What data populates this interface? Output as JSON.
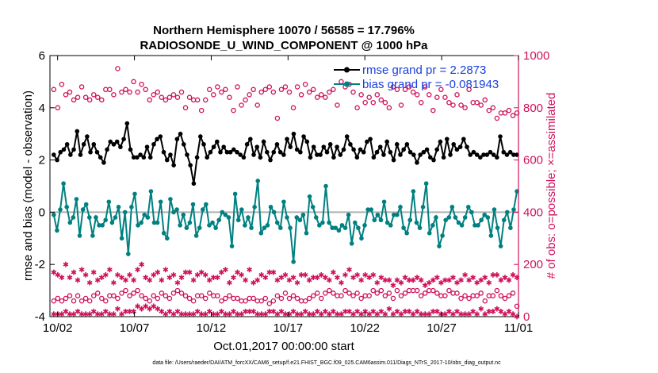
{
  "colors": {
    "rmse": "#000000",
    "bias": "#008080",
    "obs": "#d0115a",
    "zero_line": "#b0b0b0",
    "legend_text": "#1a3fe0"
  },
  "chart_data": {
    "type": "line",
    "title": "Northern Hemisphere 10070 / 56585 = 17.796%",
    "subtitle": "RADIOSONDE_U_WIND_COMPONENT @ 1000 hPa",
    "xlabel": "Oct.01,2017 00:00:00 start",
    "ylabel_left": "rmse and bias (model - observation)",
    "ylabel_right": "# of obs: o=possible; ×=assimilated",
    "footnote": "data file: /Users/raeder/DAI/ATM_forcXX/CAM6_setup/f.e21.FHIST_BGC.f09_025.CAM6assim.011/Diags_NTrS_2017-10/obs_diag_output.nc",
    "xlim": [
      1.5,
      32
    ],
    "ylim_left": [
      -4,
      6
    ],
    "ylim_right": [
      0,
      1000
    ],
    "yticks_left": [
      "-4",
      "-2",
      "0",
      "2",
      "4",
      "6"
    ],
    "yticks_right": [
      "0",
      "200",
      "400",
      "600",
      "800",
      "1000"
    ],
    "xticks": [
      {
        "x": 2,
        "label": "10/02"
      },
      {
        "x": 7,
        "label": "10/07"
      },
      {
        "x": 12,
        "label": "10/12"
      },
      {
        "x": 17,
        "label": "10/17"
      },
      {
        "x": 22,
        "label": "10/22"
      },
      {
        "x": 27,
        "label": "10/27"
      },
      {
        "x": 32,
        "label": "11/01"
      }
    ],
    "legend": [
      {
        "key": "rmse",
        "label": "rmse grand pr = 2.2873"
      },
      {
        "key": "bias",
        "label": "bias grand pr = -0.081943"
      }
    ],
    "series": [
      {
        "name": "rmse",
        "axis": "left",
        "marker": "filled-circle",
        "values": [
          2.2,
          2.0,
          2.3,
          2.4,
          2.6,
          2.2,
          2.4,
          3.1,
          2.2,
          2.6,
          2.9,
          2.3,
          2.6,
          2.3,
          2.1,
          1.9,
          2.4,
          2.7,
          2.6,
          2.7,
          2.5,
          2.8,
          3.4,
          2.4,
          2.1,
          2.1,
          2.2,
          2.1,
          2.5,
          2.1,
          2.6,
          2.8,
          2.9,
          2.3,
          2.0,
          2.2,
          1.8,
          2.8,
          3.0,
          2.6,
          2.2,
          1.8,
          1.1,
          2.1,
          2.9,
          2.6,
          2.1,
          2.3,
          2.5,
          2.7,
          2.3,
          2.5,
          2.3,
          2.3,
          2.4,
          2.3,
          2.2,
          2.1,
          2.6,
          2.8,
          2.2,
          2.5,
          2.1,
          2.7,
          2.3,
          2.0,
          2.3,
          2.6,
          2.3,
          2.2,
          2.8,
          2.5,
          3.0,
          2.4,
          2.3,
          2.9,
          2.7,
          2.1,
          2.5,
          2.2,
          2.2,
          2.5,
          2.3,
          2.6,
          2.1,
          2.5,
          2.2,
          2.4,
          2.9,
          2.6,
          2.4,
          2.1,
          2.4,
          2.3,
          2.7,
          2.8,
          2.1,
          2.3,
          2.5,
          2.2,
          2.7,
          2.3,
          2.0,
          2.6,
          2.2,
          2.4,
          2.6,
          2.3,
          2.2,
          1.9,
          2.2,
          2.3,
          2.4,
          2.1,
          2.0,
          2.4,
          2.7,
          2.1,
          2.8,
          2.2,
          2.6,
          2.4,
          2.5,
          2.8,
          2.5,
          2.2,
          2.3,
          2.2,
          2.1,
          2.2,
          2.2,
          2.3,
          2.2,
          2.1,
          2.9,
          2.3,
          2.2,
          2.3,
          2.2,
          2.2
        ]
      },
      {
        "name": "bias",
        "axis": "left",
        "marker": "filled-circle",
        "values": [
          -0.1,
          -0.7,
          0.1,
          1.1,
          0.2,
          -0.4,
          -0.2,
          0.5,
          -0.9,
          0.1,
          0.3,
          -0.2,
          -0.9,
          -0.2,
          -0.5,
          -0.5,
          -0.3,
          0.4,
          -0.4,
          -0.2,
          0.2,
          -1.0,
          0.0,
          -1.6,
          0.2,
          0.7,
          -0.5,
          -0.4,
          -0.1,
          -0.2,
          0.8,
          -0.4,
          -0.4,
          0.4,
          -0.8,
          -1.0,
          0.5,
          0.0,
          0.1,
          -0.5,
          -0.1,
          -0.6,
          -0.4,
          0.3,
          -0.9,
          -0.6,
          0.1,
          0.3,
          -0.5,
          -0.4,
          -0.6,
          -0.3,
          0.0,
          -0.1,
          -0.2,
          -1.3,
          0.7,
          -0.3,
          0.1,
          -0.5,
          -0.2,
          -0.6,
          0.2,
          1.2,
          -0.8,
          -0.6,
          -0.5,
          0.2,
          0.0,
          -0.4,
          -0.6,
          0.4,
          -0.2,
          -0.6,
          -1.9,
          -0.2,
          -0.3,
          -0.1,
          -0.8,
          0.6,
          0.2,
          -0.2,
          -0.5,
          -0.4,
          1.0,
          -0.4,
          -0.6,
          -0.6,
          -0.7,
          -0.5,
          -0.6,
          -0.1,
          -1.2,
          -0.4,
          -0.6,
          -1.0,
          -0.5,
          0.1,
          0.1,
          -0.3,
          -0.1,
          -0.3,
          0.4,
          -0.4,
          -0.5,
          -0.1,
          -0.1,
          0.2,
          -0.6,
          -0.8,
          -0.3,
          0.8,
          -0.4,
          -0.6,
          0.2,
          1.1,
          -0.8,
          -0.5,
          -0.2,
          -1.3,
          -0.9,
          -0.3,
          -0.2,
          0.2,
          -0.2,
          -0.4,
          -0.5,
          -0.2,
          0.2,
          0.0,
          -0.5,
          -0.5,
          -0.3,
          -0.1,
          -0.2,
          -0.9,
          0.1,
          -0.6,
          -1.3,
          -0.3,
          0.0,
          -0.6,
          0.1,
          0.8
        ]
      },
      {
        "name": "obs possible",
        "axis": "right",
        "marker": "open-circle",
        "values": [
          870,
          800,
          890,
          850,
          860,
          830,
          840,
          880,
          840,
          830,
          850,
          840,
          830,
          870,
          870,
          850,
          950,
          860,
          870,
          860,
          900,
          860,
          890,
          870,
          830,
          850,
          860,
          840,
          830,
          840,
          850,
          840,
          860,
          800,
          840,
          830,
          830,
          790,
          830,
          870,
          850,
          880,
          860,
          870,
          840,
          790,
          880,
          810,
          830,
          850,
          870,
          810,
          860,
          870,
          880,
          860,
          760,
          870,
          880,
          860,
          800,
          880,
          850,
          890,
          860,
          870,
          840,
          850,
          840,
          860,
          870,
          810,
          900,
          880,
          890,
          860,
          800,
          850,
          820,
          840,
          820,
          850,
          830,
          820,
          800,
          880,
          870,
          810,
          870,
          880,
          860,
          850,
          820,
          880,
          850,
          790,
          840,
          870,
          840,
          820,
          810,
          850,
          810,
          800,
          870,
          820,
          820,
          810,
          830,
          790,
          800,
          760,
          780,
          780,
          790,
          770,
          780
        ]
      },
      {
        "name": "obs assimilated",
        "axis": "right",
        "marker": "star",
        "values": [
          170,
          160,
          150,
          200,
          150,
          170,
          140,
          180,
          160,
          130,
          170,
          140,
          150,
          160,
          180,
          130,
          160,
          150,
          140,
          160,
          140,
          180,
          200,
          150,
          140,
          160,
          170,
          140,
          180,
          150,
          160,
          130,
          150,
          170,
          170,
          140,
          160,
          170,
          160,
          140,
          150,
          150,
          170,
          180,
          130,
          150,
          170,
          160,
          140,
          180,
          130,
          140,
          160,
          150,
          170,
          170,
          140,
          150,
          160,
          140,
          150,
          130,
          160,
          160,
          140,
          150,
          150,
          160,
          150,
          140,
          170,
          150,
          130,
          160,
          180,
          150,
          160,
          140,
          160,
          150,
          160,
          130,
          150,
          140,
          140,
          120,
          140,
          130,
          150,
          140,
          140,
          150,
          140,
          120,
          130,
          140,
          150,
          130,
          140,
          140,
          150,
          130,
          140,
          160,
          140,
          150,
          130,
          140,
          150,
          130,
          160,
          160,
          140,
          150,
          140,
          160,
          150
        ]
      },
      {
        "name": "obs possible low",
        "axis": "right",
        "marker": "open-circle",
        "values": [
          60,
          70,
          60,
          70,
          80,
          60,
          80,
          60,
          70,
          60,
          80,
          90,
          70,
          60,
          80,
          80,
          70,
          90,
          100,
          80,
          90,
          100,
          80,
          70,
          60,
          80,
          70,
          90,
          80,
          70,
          90,
          100,
          90,
          80,
          70,
          60,
          80,
          80,
          70,
          90,
          80,
          80,
          60,
          70,
          80,
          70,
          70,
          60,
          60,
          70,
          70,
          60,
          60,
          70,
          50,
          60,
          80,
          70,
          90,
          70,
          80,
          70,
          60,
          60,
          70,
          80,
          90,
          70,
          90,
          100,
          90,
          80,
          80,
          100,
          90,
          80,
          90,
          70,
          80,
          80,
          100,
          90,
          100,
          80,
          90,
          70,
          100,
          80,
          90,
          100,
          100,
          100,
          80,
          90,
          100,
          100,
          90,
          80,
          80,
          100,
          90,
          90,
          70,
          80,
          70,
          80,
          80,
          90,
          60,
          80,
          80,
          100,
          80,
          70,
          80,
          90,
          40
        ]
      },
      {
        "name": "obs assimilated low",
        "axis": "right",
        "marker": "star",
        "values": [
          10,
          10,
          10,
          20,
          10,
          10,
          20,
          10,
          10,
          10,
          20,
          10,
          10,
          20,
          10,
          10,
          30,
          10,
          20,
          20,
          20,
          40,
          30,
          40,
          30,
          40,
          30,
          20,
          10,
          20,
          10,
          20,
          10,
          10,
          10,
          10,
          20,
          10,
          10,
          20,
          10,
          10,
          20,
          10,
          10,
          20,
          10,
          10,
          20,
          20,
          20,
          10,
          10,
          10,
          20,
          20,
          10,
          20,
          10,
          10,
          20,
          10,
          10,
          20,
          10,
          10,
          20,
          10,
          20,
          10,
          20,
          10,
          10,
          20,
          20,
          10,
          20,
          10,
          20,
          10,
          20,
          10,
          20,
          10,
          30,
          10,
          20,
          10,
          20,
          20,
          10,
          20,
          10,
          10,
          10,
          20,
          20,
          10,
          10,
          20,
          10,
          20,
          10,
          10,
          10,
          20,
          10,
          30,
          10,
          20,
          20,
          30,
          20,
          10,
          20,
          10,
          0
        ]
      }
    ]
  }
}
